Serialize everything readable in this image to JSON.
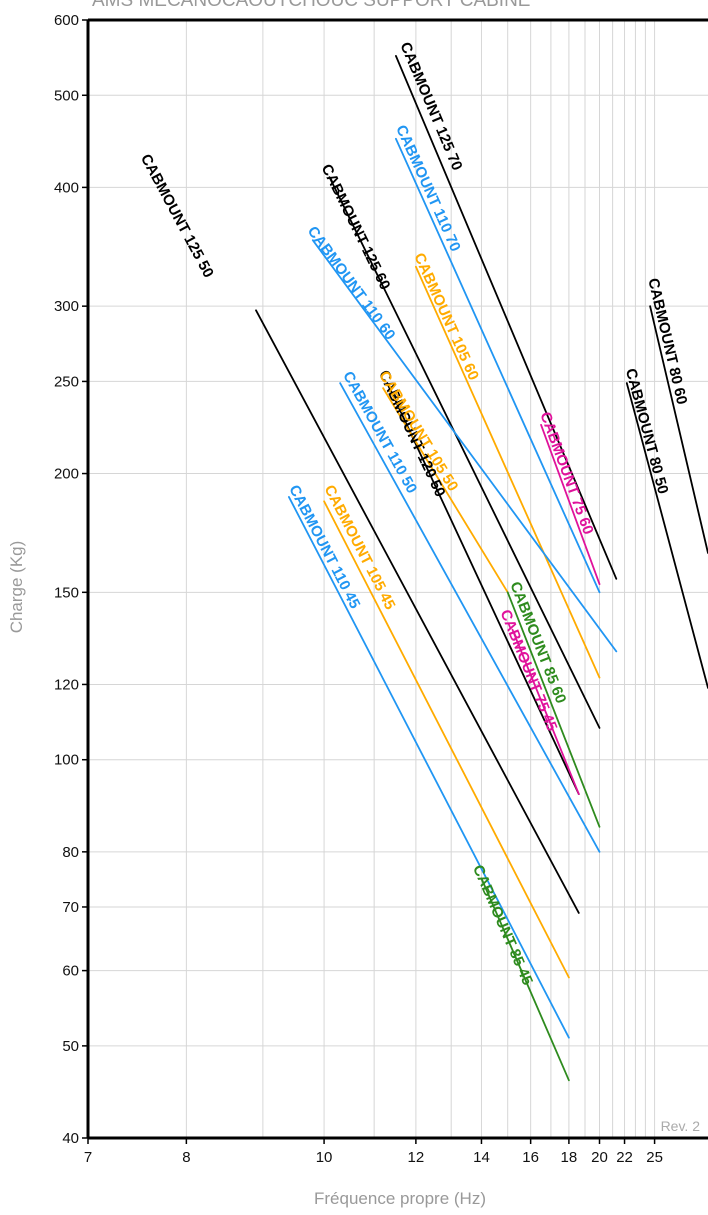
{
  "chart_data": {
    "type": "line",
    "title": "AMS MECANOCAOUTCHOUC SUPPORT CABINE",
    "xlabel": "Fréquence propre (Hz)",
    "ylabel": "Charge (Kg)",
    "revision": "Rev. 2",
    "x_scale": "reciprocal",
    "y_scale": "log",
    "xlim": [
      7,
      33
    ],
    "ylim": [
      40,
      600
    ],
    "grid": true,
    "x_ticks": [
      7,
      8,
      10,
      12,
      14,
      16,
      18,
      20,
      22,
      25
    ],
    "x_tick_labels": [
      "7",
      "8",
      "10",
      "12",
      "14",
      "16",
      "18",
      "20",
      "22",
      "25"
    ],
    "x_minor_grid": [
      9,
      11,
      13,
      15,
      17,
      19,
      21,
      23,
      24
    ],
    "y_ticks": [
      40,
      50,
      60,
      70,
      80,
      100,
      120,
      150,
      200,
      250,
      300,
      400,
      500,
      600
    ],
    "y_tick_labels": [
      "40",
      "50",
      "60",
      "70",
      "80",
      "100",
      "120",
      "150",
      "200",
      "250",
      "300",
      "400",
      "500",
      "600"
    ],
    "series": [
      {
        "name": "CABMOUNT 125 70",
        "color": "#000000",
        "points": [
          [
            11.5,
            550
          ],
          [
            21.3,
            155
          ]
        ]
      },
      {
        "name": "CABMOUNT 110 70",
        "color": "#2196f3",
        "points": [
          [
            11.5,
            450
          ],
          [
            20.0,
            150
          ]
        ]
      },
      {
        "name": "CABMOUNT 75 60",
        "color": "#e0129b",
        "points": [
          [
            16.5,
            225
          ],
          [
            20.0,
            153
          ]
        ]
      },
      {
        "name": "CABMOUNT 105 60",
        "color": "#ffab00",
        "points": [
          [
            12.0,
            330
          ],
          [
            20.0,
            122
          ]
        ]
      },
      {
        "name": "CABMOUNT 125 60",
        "color": "#000000",
        "points": [
          [
            10.1,
            410
          ],
          [
            20.0,
            108
          ]
        ]
      },
      {
        "name": "CABMOUNT 110 60",
        "color": "#2196f3",
        "points": [
          [
            9.8,
            352
          ],
          [
            21.3,
            130
          ]
        ]
      },
      {
        "name": "CABMOUNT 125 50",
        "color": "#000000",
        "points": [
          [
            8.9,
            297
          ],
          [
            18.6,
            69
          ]
        ]
      },
      {
        "name": "CABMOUNT 120 50",
        "color": "#000000",
        "points": [
          [
            11.3,
            249
          ],
          [
            18.6,
            92
          ]
        ]
      },
      {
        "name": "CABMOUNT 105 50",
        "color": "#ffab00",
        "points": [
          [
            11.2,
            246
          ],
          [
            15.0,
            150
          ]
        ]
      },
      {
        "name": "CABMOUNT 110 50",
        "color": "#2196f3",
        "points": [
          [
            10.3,
            249
          ],
          [
            20.0,
            80
          ]
        ]
      },
      {
        "name": "CABMOUNT 105 45",
        "color": "#ffab00",
        "points": [
          [
            10.0,
            187
          ],
          [
            18.0,
            59
          ]
        ]
      },
      {
        "name": "CABMOUNT 110 45",
        "color": "#2196f3",
        "points": [
          [
            9.4,
            189
          ],
          [
            18.0,
            51
          ]
        ]
      },
      {
        "name": "CABMOUNT 85 60",
        "color": "#2e8b1e",
        "points": [
          [
            15.0,
            150
          ],
          [
            20.0,
            85
          ]
        ]
      },
      {
        "name": "CABMOUNT 75 45",
        "color": "#e0129b",
        "points": [
          [
            15.2,
            137
          ],
          [
            18.6,
            92
          ]
        ]
      },
      {
        "name": "CABMOUNT 85 45",
        "color": "#2e8b1e",
        "points": [
          [
            14.0,
            75
          ],
          [
            18.0,
            46
          ]
        ]
      },
      {
        "name": "CABMOUNT 80 60",
        "color": "#000000",
        "points": [
          [
            24.5,
            300
          ],
          [
            33.0,
            165
          ]
        ]
      },
      {
        "name": "CABMOUNT 80 50",
        "color": "#000000",
        "points": [
          [
            22.2,
            249
          ],
          [
            33.0,
            119
          ]
        ]
      }
    ],
    "labels": [
      {
        "text": "CABMOUNT 125 70",
        "color": "#000000",
        "x": 11.6,
        "y": 565,
        "slope_from": "CABMOUNT 125 70"
      },
      {
        "text": "CABMOUNT 110 70",
        "color": "#2196f3",
        "x": 11.5,
        "y": 462,
        "slope_from": "CABMOUNT 110 70"
      },
      {
        "text": "CABMOUNT 75 60",
        "color": "#e0129b",
        "x": 16.45,
        "y": 231,
        "slope_from": "CABMOUNT 75 60"
      },
      {
        "text": "CABMOUNT 105 60",
        "color": "#ffab00",
        "x": 11.95,
        "y": 339,
        "slope_from": "CABMOUNT 105 60"
      },
      {
        "text": "CABMOUNT 125 60",
        "color": "#000000",
        "x": 9.95,
        "y": 420,
        "slope_from": "CABMOUNT 125 60"
      },
      {
        "text": "CABMOUNT 110 60",
        "color": "#2196f3",
        "x": 9.7,
        "y": 360,
        "slope_from": "CABMOUNT 110 60"
      },
      {
        "text": "CABMOUNT 125 50",
        "color": "#000000",
        "x": 7.5,
        "y": 430,
        "slope_from": "CABMOUNT 125 50"
      },
      {
        "text": "CABMOUNT 120 50",
        "color": "#000000",
        "x": 11.1,
        "y": 255,
        "slope_from": "CABMOUNT 120 50"
      },
      {
        "text": "CABMOUNT 105 50",
        "color": "#ffab00",
        "x": 11.1,
        "y": 254,
        "slope_from": "CABMOUNT 105 50"
      },
      {
        "text": "CABMOUNT 110 50",
        "color": "#2196f3",
        "x": 10.35,
        "y": 254,
        "slope_from": "CABMOUNT 110 50"
      },
      {
        "text": "CABMOUNT 105 45",
        "color": "#ffab00",
        "x": 10.0,
        "y": 193,
        "slope_from": "CABMOUNT 105 45"
      },
      {
        "text": "CABMOUNT 110 45",
        "color": "#2196f3",
        "x": 9.4,
        "y": 193,
        "slope_from": "CABMOUNT 110 45"
      },
      {
        "text": "CABMOUNT 85 60",
        "color": "#2e8b1e",
        "x": 15.1,
        "y": 153,
        "slope_from": "CABMOUNT 85 60"
      },
      {
        "text": "CABMOUNT 75 45",
        "color": "#e0129b",
        "x": 14.7,
        "y": 143,
        "slope_from": "CABMOUNT 75 45"
      },
      {
        "text": "CABMOUNT 85 45",
        "color": "#2e8b1e",
        "x": 13.7,
        "y": 77,
        "slope_from": "CABMOUNT 85 45"
      },
      {
        "text": "CABMOUNT 80 60",
        "color": "#000000",
        "x": 24.3,
        "y": 320,
        "slope_from": "CABMOUNT 80 60"
      },
      {
        "text": "CABMOUNT 80 50",
        "color": "#000000",
        "x": 22.1,
        "y": 257,
        "slope_from": "CABMOUNT 80 50"
      }
    ]
  }
}
